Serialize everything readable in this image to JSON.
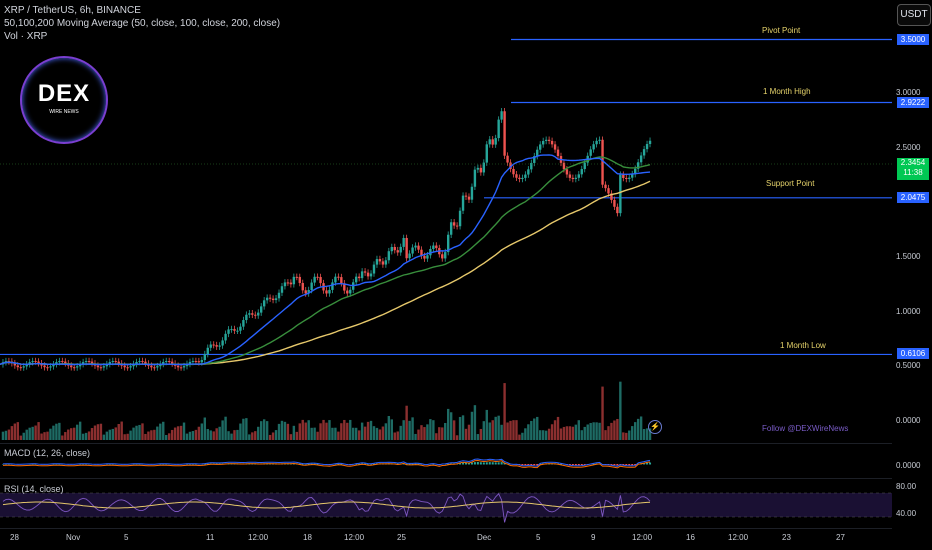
{
  "header": {
    "symbol_line": "XRP / TetherUS, 6h, BINANCE",
    "ma_line": "50,100,200 Moving Average (50, close, 100, close, 200, close)",
    "vol_line": "Vol · XRP"
  },
  "currency_button": "USDT",
  "price_axis": {
    "ticks": [
      "3.0000",
      "2.5000",
      "1.5000",
      "1.0000",
      "0.5000",
      "0.0000"
    ],
    "current_price": "2.3454",
    "current_price_sub": "11:38"
  },
  "levels": [
    {
      "name": "Pivot Point",
      "value": "3.5000"
    },
    {
      "name": "1 Month High",
      "value": "2.9222"
    },
    {
      "name": "Support Point",
      "value": "2.0475"
    },
    {
      "name": "1 Month Low",
      "value": "0.6106"
    }
  ],
  "logo": {
    "text": "DEX",
    "subtext": "WIRE NEWS"
  },
  "watermark": "Follow @DEXWireNews",
  "macd": {
    "title": "MACD (12, 26, close)",
    "axis_tick": "0.0000"
  },
  "rsi": {
    "title": "RSI (14, close)",
    "axis_ticks": [
      "80.00",
      "40.00"
    ]
  },
  "time_axis": [
    "28",
    "Nov",
    "5",
    "11",
    "12:00",
    "18",
    "12:00",
    "25",
    "Dec",
    "5",
    "9",
    "12:00",
    "16",
    "12:00",
    "23",
    "27"
  ],
  "colors": {
    "up": "#26a69a",
    "down": "#ef5350",
    "ma50": "#2962ff",
    "ma100": "#388e3c",
    "ma200": "#e6c86b",
    "level": "#2962ff",
    "price_tag": "#00c853"
  }
}
